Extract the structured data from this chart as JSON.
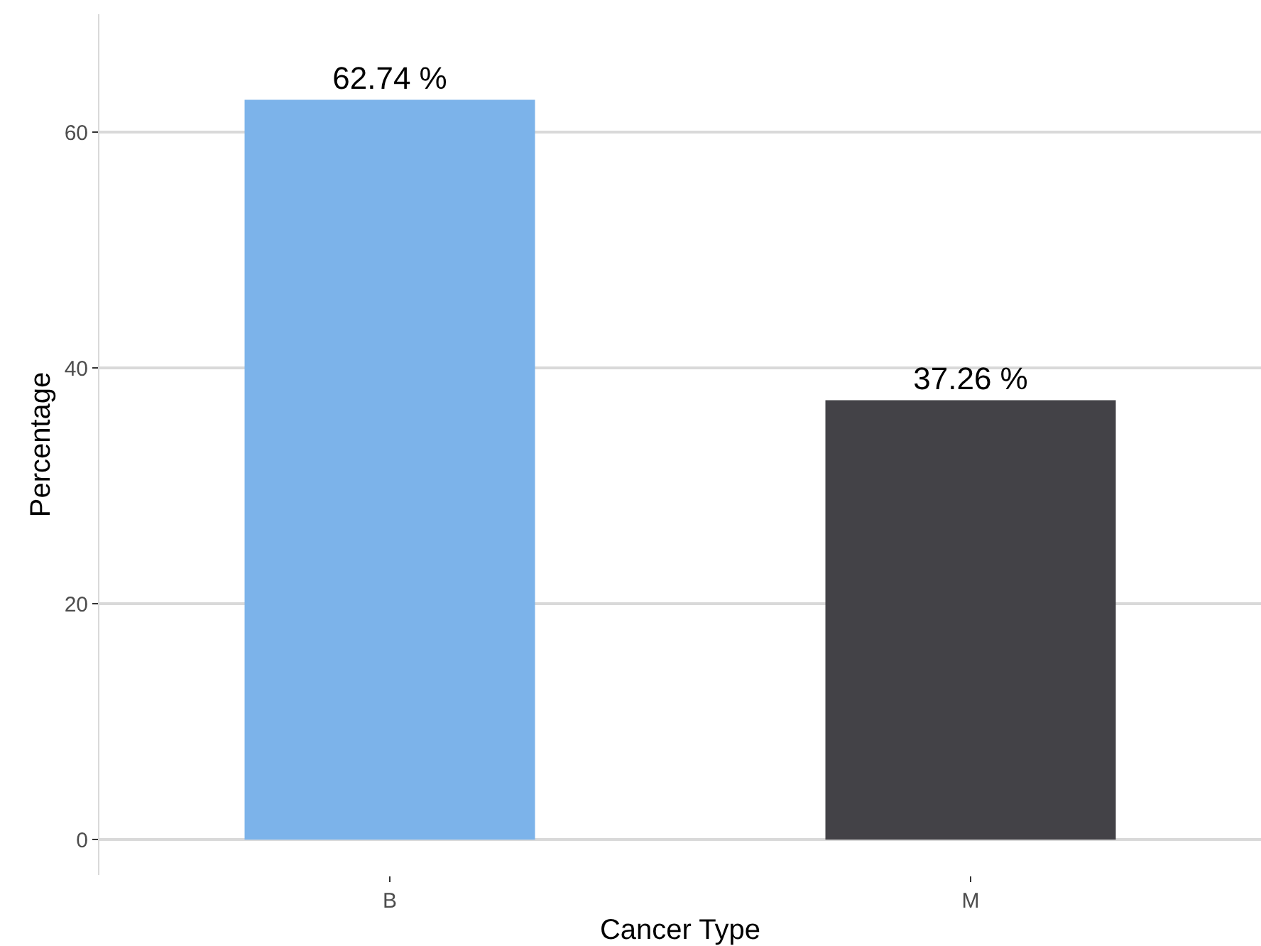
{
  "chart_data": {
    "type": "bar",
    "xlabel": "Cancer Type",
    "ylabel": "Percentage",
    "categories": [
      "B",
      "M"
    ],
    "values": [
      62.74,
      37.26
    ],
    "colors": [
      "#7cb3ea",
      "#434247"
    ],
    "value_labels": [
      "62.74 %",
      "37.26 %"
    ],
    "ylim": [
      -3,
      70
    ],
    "yticks": [
      0,
      20,
      40,
      60
    ],
    "grid": "y",
    "legend": false
  }
}
